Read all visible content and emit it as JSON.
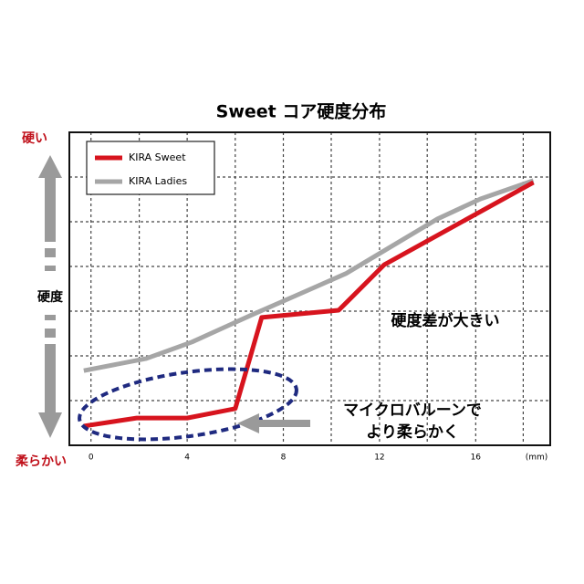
{
  "chart_data": {
    "type": "line",
    "title": "Sweet コア硬度分布",
    "x_label": "(mm)",
    "y_label_top": "硬い",
    "y_label_middle": "硬度",
    "y_label_bottom": "柔らかい",
    "annotations": [
      "硬度差が大きい",
      "マイクロバルーンで",
      "より柔らかく"
    ],
    "xlim": [
      -0.9,
      19.1
    ],
    "xticks": [
      0,
      4,
      8,
      12,
      16
    ],
    "ylim": [
      0,
      7
    ],
    "grid": true,
    "legend": "upper left",
    "series": [
      {
        "name": "KIRA Sweet",
        "color": "#d7141e",
        "x": [
          -0.3,
          1.9,
          4,
          6,
          7.1,
          10.3,
          12.2,
          18.4
        ],
        "values": [
          0.43,
          0.61,
          0.61,
          0.82,
          2.86,
          3.02,
          4.04,
          5.88
        ]
      },
      {
        "name": "KIRA Ladies",
        "color": "#a6a6a6",
        "x": [
          -0.3,
          2.3,
          4.2,
          6.7,
          8.7,
          10.6,
          12.5,
          14.4,
          16.2,
          18.4
        ],
        "values": [
          1.67,
          1.94,
          2.31,
          2.92,
          3.39,
          3.84,
          4.45,
          5.06,
          5.51,
          5.92
        ]
      }
    ]
  }
}
